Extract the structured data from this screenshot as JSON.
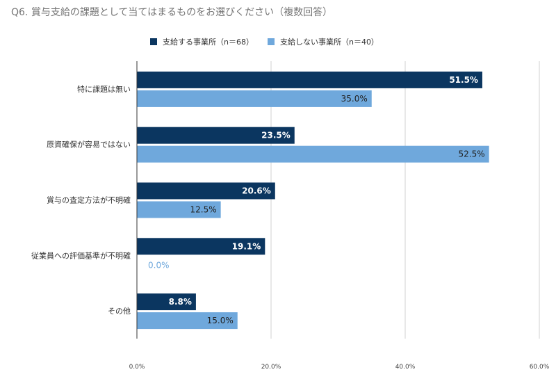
{
  "chart_data": {
    "type": "bar",
    "orientation": "horizontal",
    "title": "Q6. 賞与支給の課題として当てはまるものをお選びください（複数回答）",
    "categories": [
      "特に課題は無い",
      "原資確保が容易ではない",
      "賞与の査定方法が不明確",
      "従業員への評価基準が不明確",
      "その他"
    ],
    "series": [
      {
        "name": "支給する事業所（n＝68）",
        "values": [
          51.5,
          23.5,
          20.6,
          19.1,
          8.8
        ],
        "labels": [
          "51.5%",
          "23.5%",
          "20.6%",
          "19.1%",
          "8.8%"
        ],
        "color": "#0b3660"
      },
      {
        "name": "支給しない事業所（n＝40）",
        "values": [
          35.0,
          52.5,
          12.5,
          0.0,
          15.0
        ],
        "labels": [
          "35.0%",
          "52.5%",
          "12.5%",
          "0.0%",
          "15.0%"
        ],
        "color": "#6fa8dc"
      }
    ],
    "xlim": [
      0,
      60
    ],
    "xticks": [
      0,
      20,
      40,
      60
    ],
    "xtick_labels": [
      "0.0%",
      "20.0%",
      "40.0%",
      "60.0%"
    ],
    "grid": true,
    "legend_position": "top"
  }
}
